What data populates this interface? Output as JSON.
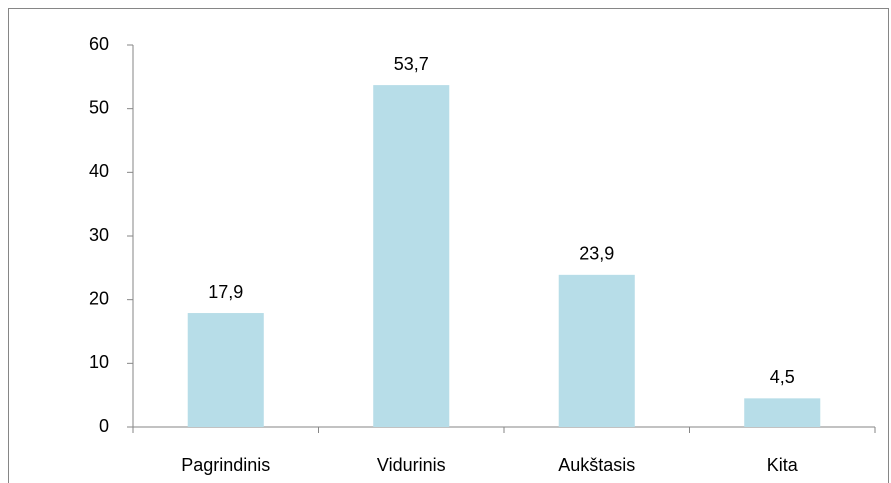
{
  "chart_data": {
    "type": "bar",
    "categories": [
      "Pagrindinis",
      "Vidurinis",
      "Aukštasis",
      "Kita"
    ],
    "values": [
      17.9,
      53.7,
      23.9,
      4.5
    ],
    "value_labels": [
      "17,9",
      "53,7",
      "23,9",
      "4,5"
    ],
    "color": "#b7dde8",
    "ylim": [
      0,
      60
    ],
    "yticks": [
      0,
      10,
      20,
      30,
      40,
      50,
      60
    ],
    "grid": false
  }
}
